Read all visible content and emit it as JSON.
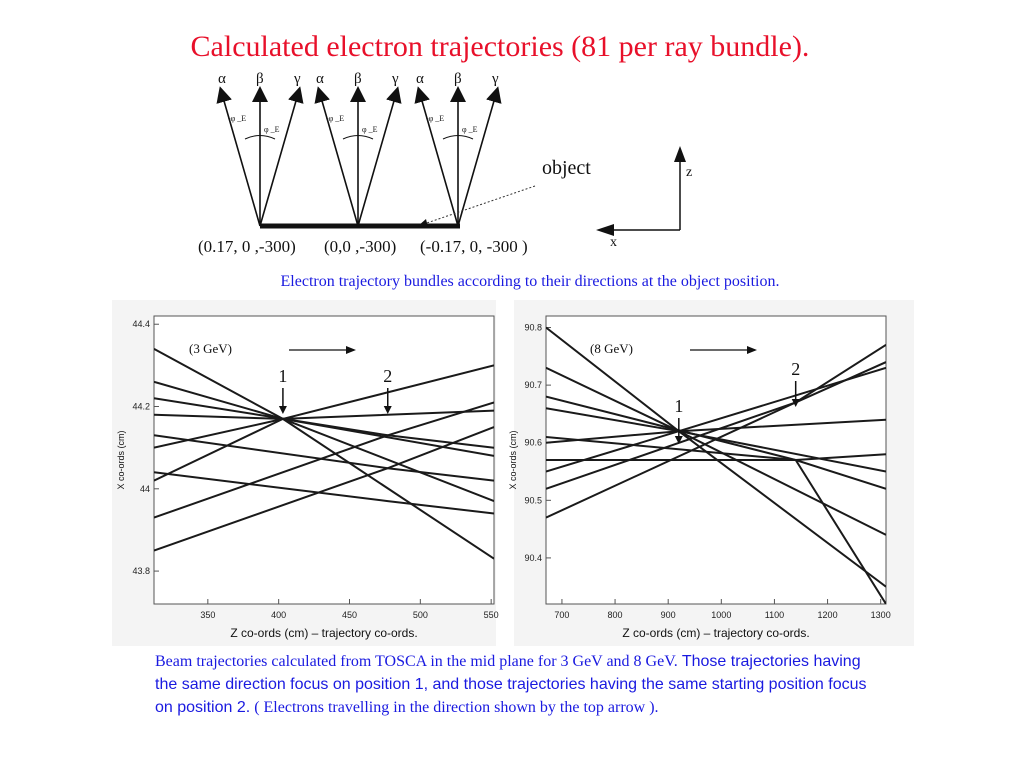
{
  "title": "Calculated electron trajectories (81 per ray bundle).",
  "diagram": {
    "greek_labels": [
      "α",
      "β",
      "γ",
      "α",
      "β",
      "γ",
      "α",
      "β",
      "γ"
    ],
    "angle_label_neg": "-φ _E",
    "angle_label_pos": "φ _E",
    "object_label": "object",
    "axis_z": "z",
    "axis_x": "x",
    "positions": [
      "(0.17, 0 ,-300)",
      "(0,0 ,-300)",
      "(-0.17, 0, -300 )"
    ]
  },
  "caption_top": "Electron trajectory bundles according to their directions at the object position.",
  "chart_data": [
    {
      "type": "line",
      "energy_label": "(3 GeV)",
      "marker_1": "1",
      "marker_2": "2",
      "xlabel": "Z co-ords (cm) – trajectory co-ords.",
      "ylabel": "X co-ords (cm)",
      "xlim": [
        312,
        552
      ],
      "ylim": [
        43.72,
        44.42
      ],
      "xticks": [
        "350",
        "400",
        "450",
        "500",
        "550"
      ],
      "yticks": [
        "43.8",
        "44",
        "44.2",
        "44.4"
      ],
      "xtick_values": [
        350,
        400,
        450,
        500,
        550
      ],
      "ytick_values": [
        43.8,
        44.0,
        44.2,
        44.4
      ],
      "focus_1_x": 403,
      "focus_2_x": 477,
      "series": [
        {
          "x": [
            312,
            403,
            552
          ],
          "y": [
            44.34,
            44.17,
            43.83
          ]
        },
        {
          "x": [
            312,
            403,
            552
          ],
          "y": [
            44.26,
            44.17,
            43.97
          ]
        },
        {
          "x": [
            312,
            403,
            552
          ],
          "y": [
            44.18,
            44.17,
            44.08
          ]
        },
        {
          "x": [
            312,
            403,
            552
          ],
          "y": [
            44.1,
            44.17,
            44.19
          ]
        },
        {
          "x": [
            312,
            403,
            552
          ],
          "y": [
            44.02,
            44.17,
            44.3
          ]
        },
        {
          "x": [
            312,
            477,
            552
          ],
          "y": [
            44.22,
            44.13,
            44.1
          ]
        },
        {
          "x": [
            312,
            477,
            552
          ],
          "y": [
            44.13,
            44.05,
            44.02
          ]
        },
        {
          "x": [
            312,
            477,
            552
          ],
          "y": [
            44.04,
            43.97,
            43.94
          ]
        },
        {
          "x": [
            312,
            477,
            552
          ],
          "y": [
            43.93,
            44.13,
            44.21
          ]
        },
        {
          "x": [
            312,
            477,
            552
          ],
          "y": [
            43.85,
            44.05,
            44.15
          ]
        }
      ]
    },
    {
      "type": "line",
      "energy_label": "(8 GeV)",
      "marker_1": "1",
      "marker_2": "2",
      "xlabel": "Z co-ords (cm) – trajectory co-ords.",
      "ylabel": "X co-ords (cm)",
      "xlim": [
        670,
        1310
      ],
      "ylim": [
        90.32,
        90.82
      ],
      "xticks": [
        "700",
        "800",
        "900",
        "1000",
        "1100",
        "1200",
        "1300"
      ],
      "yticks": [
        "90.4",
        "90.5",
        "90.6",
        "90.7",
        "90.8"
      ],
      "xtick_values": [
        700,
        800,
        900,
        1000,
        1100,
        1200,
        1300
      ],
      "ytick_values": [
        90.4,
        90.5,
        90.6,
        90.7,
        90.8
      ],
      "focus_1_x": 920,
      "focus_2_x": 1140,
      "series": [
        {
          "x": [
            670,
            920,
            1310
          ],
          "y": [
            90.8,
            90.62,
            90.35
          ]
        },
        {
          "x": [
            670,
            920,
            1310
          ],
          "y": [
            90.73,
            90.62,
            90.44
          ]
        },
        {
          "x": [
            670,
            920,
            1310
          ],
          "y": [
            90.66,
            90.62,
            90.55
          ]
        },
        {
          "x": [
            670,
            920,
            1310
          ],
          "y": [
            90.6,
            90.62,
            90.64
          ]
        },
        {
          "x": [
            670,
            920,
            1310
          ],
          "y": [
            90.55,
            90.62,
            90.73
          ]
        },
        {
          "x": [
            670,
            1140,
            1310
          ],
          "y": [
            90.68,
            90.57,
            90.32
          ]
        },
        {
          "x": [
            670,
            1140,
            1310
          ],
          "y": [
            90.61,
            90.57,
            90.52
          ]
        },
        {
          "x": [
            670,
            1140,
            1310
          ],
          "y": [
            90.57,
            90.57,
            90.58
          ]
        },
        {
          "x": [
            670,
            1140,
            1310
          ],
          "y": [
            90.52,
            90.67,
            90.74
          ]
        },
        {
          "x": [
            670,
            1140,
            1310
          ],
          "y": [
            90.47,
            90.67,
            90.77
          ]
        }
      ]
    }
  ],
  "caption_bottom": {
    "part1": "Beam trajectories calculated from TOSCA in the mid plane for 3 GeV and 8 GeV.",
    "part2": " Those trajectories having the same direction focus on position 1, and those trajectories having the same starting position focus on position 2.",
    "part3": " ( Electrons travelling in the direction shown by the top arrow )."
  }
}
